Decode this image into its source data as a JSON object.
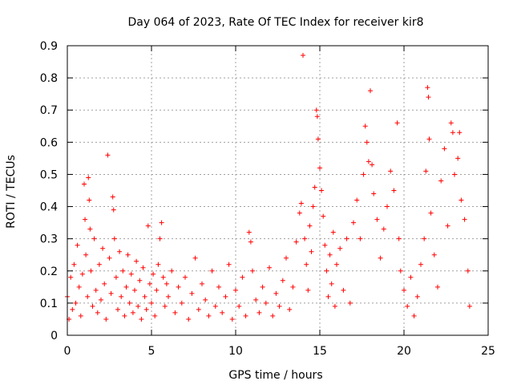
{
  "chart_data": {
    "type": "scatter",
    "title": "Day 064 of 2023, Rate Of TEC Index for receiver kir8",
    "xlabel": "GPS time / hours",
    "ylabel": "ROTI / TECUs",
    "xlim": [
      0,
      25
    ],
    "ylim": [
      0,
      0.9
    ],
    "x_ticks": [
      0,
      5,
      10,
      15,
      20,
      25
    ],
    "x_tick_labels": [
      "0",
      "5",
      "10",
      "15",
      "20",
      "25"
    ],
    "y_ticks": [
      0,
      0.1,
      0.2,
      0.3,
      0.4,
      0.5,
      0.6,
      0.7,
      0.8,
      0.9
    ],
    "y_tick_labels": [
      "0",
      "0.1",
      "0.2",
      "0.3",
      "0.4",
      "0.5",
      "0.6",
      "0.7",
      "0.8",
      "0.9"
    ],
    "grid": true,
    "marker": "+",
    "marker_color": "#ff0000",
    "series": [
      {
        "name": "ROTI",
        "points": [
          [
            0.0,
            0.12
          ],
          [
            0.1,
            0.05
          ],
          [
            0.2,
            0.18
          ],
          [
            0.3,
            0.08
          ],
          [
            0.4,
            0.22
          ],
          [
            0.5,
            0.1
          ],
          [
            0.6,
            0.28
          ],
          [
            0.7,
            0.15
          ],
          [
            0.8,
            0.06
          ],
          [
            0.9,
            0.19
          ],
          [
            1.0,
            0.47
          ],
          [
            1.05,
            0.36
          ],
          [
            1.1,
            0.25
          ],
          [
            1.2,
            0.12
          ],
          [
            1.25,
            0.49
          ],
          [
            1.3,
            0.42
          ],
          [
            1.35,
            0.33
          ],
          [
            1.4,
            0.2
          ],
          [
            1.5,
            0.09
          ],
          [
            1.6,
            0.3
          ],
          [
            1.7,
            0.14
          ],
          [
            1.8,
            0.07
          ],
          [
            1.9,
            0.22
          ],
          [
            2.0,
            0.11
          ],
          [
            2.1,
            0.27
          ],
          [
            2.2,
            0.16
          ],
          [
            2.3,
            0.05
          ],
          [
            2.4,
            0.56
          ],
          [
            2.5,
            0.24
          ],
          [
            2.6,
            0.13
          ],
          [
            2.7,
            0.43
          ],
          [
            2.75,
            0.39
          ],
          [
            2.8,
            0.3
          ],
          [
            2.9,
            0.18
          ],
          [
            3.0,
            0.08
          ],
          [
            3.1,
            0.26
          ],
          [
            3.2,
            0.12
          ],
          [
            3.3,
            0.2
          ],
          [
            3.4,
            0.06
          ],
          [
            3.5,
            0.15
          ],
          [
            3.6,
            0.25
          ],
          [
            3.7,
            0.1
          ],
          [
            3.8,
            0.19
          ],
          [
            3.9,
            0.07
          ],
          [
            4.0,
            0.14
          ],
          [
            4.1,
            0.23
          ],
          [
            4.2,
            0.09
          ],
          [
            4.3,
            0.17
          ],
          [
            4.4,
            0.05
          ],
          [
            4.5,
            0.21
          ],
          [
            4.6,
            0.12
          ],
          [
            4.7,
            0.08
          ],
          [
            4.8,
            0.34
          ],
          [
            4.9,
            0.16
          ],
          [
            5.0,
            0.1
          ],
          [
            5.1,
            0.19
          ],
          [
            5.2,
            0.06
          ],
          [
            5.3,
            0.14
          ],
          [
            5.4,
            0.22
          ],
          [
            5.5,
            0.3
          ],
          [
            5.6,
            0.35
          ],
          [
            5.7,
            0.18
          ],
          [
            5.8,
            0.09
          ],
          [
            5.9,
            0.16
          ],
          [
            6.0,
            0.12
          ],
          [
            6.2,
            0.2
          ],
          [
            6.4,
            0.07
          ],
          [
            6.6,
            0.15
          ],
          [
            6.8,
            0.1
          ],
          [
            7.0,
            0.18
          ],
          [
            7.2,
            0.05
          ],
          [
            7.4,
            0.13
          ],
          [
            7.6,
            0.24
          ],
          [
            7.8,
            0.08
          ],
          [
            8.0,
            0.16
          ],
          [
            8.2,
            0.11
          ],
          [
            8.4,
            0.06
          ],
          [
            8.6,
            0.2
          ],
          [
            8.8,
            0.09
          ],
          [
            9.0,
            0.15
          ],
          [
            9.2,
            0.07
          ],
          [
            9.4,
            0.12
          ],
          [
            9.6,
            0.22
          ],
          [
            9.8,
            0.05
          ],
          [
            10.0,
            0.14
          ],
          [
            10.2,
            0.09
          ],
          [
            10.4,
            0.18
          ],
          [
            10.6,
            0.06
          ],
          [
            10.8,
            0.32
          ],
          [
            10.9,
            0.29
          ],
          [
            11.0,
            0.2
          ],
          [
            11.2,
            0.11
          ],
          [
            11.4,
            0.07
          ],
          [
            11.6,
            0.15
          ],
          [
            11.8,
            0.1
          ],
          [
            12.0,
            0.21
          ],
          [
            12.2,
            0.06
          ],
          [
            12.4,
            0.13
          ],
          [
            12.6,
            0.09
          ],
          [
            12.8,
            0.17
          ],
          [
            13.0,
            0.24
          ],
          [
            13.2,
            0.08
          ],
          [
            13.4,
            0.15
          ],
          [
            13.6,
            0.29
          ],
          [
            13.8,
            0.38
          ],
          [
            13.9,
            0.41
          ],
          [
            14.0,
            0.87
          ],
          [
            14.1,
            0.3
          ],
          [
            14.2,
            0.22
          ],
          [
            14.3,
            0.14
          ],
          [
            14.4,
            0.34
          ],
          [
            14.5,
            0.26
          ],
          [
            14.6,
            0.4
          ],
          [
            14.7,
            0.46
          ],
          [
            14.8,
            0.7
          ],
          [
            14.85,
            0.68
          ],
          [
            14.9,
            0.61
          ],
          [
            15.0,
            0.52
          ],
          [
            15.1,
            0.45
          ],
          [
            15.2,
            0.37
          ],
          [
            15.3,
            0.28
          ],
          [
            15.4,
            0.2
          ],
          [
            15.5,
            0.12
          ],
          [
            15.6,
            0.25
          ],
          [
            15.7,
            0.16
          ],
          [
            15.8,
            0.32
          ],
          [
            15.9,
            0.09
          ],
          [
            16.0,
            0.22
          ],
          [
            16.2,
            0.27
          ],
          [
            16.4,
            0.14
          ],
          [
            16.6,
            0.3
          ],
          [
            16.8,
            0.1
          ],
          [
            17.0,
            0.35
          ],
          [
            17.2,
            0.42
          ],
          [
            17.4,
            0.3
          ],
          [
            17.6,
            0.5
          ],
          [
            17.7,
            0.65
          ],
          [
            17.8,
            0.6
          ],
          [
            17.9,
            0.54
          ],
          [
            18.0,
            0.76
          ],
          [
            18.1,
            0.53
          ],
          [
            18.2,
            0.44
          ],
          [
            18.4,
            0.36
          ],
          [
            18.6,
            0.24
          ],
          [
            18.8,
            0.33
          ],
          [
            19.0,
            0.4
          ],
          [
            19.2,
            0.51
          ],
          [
            19.4,
            0.45
          ],
          [
            19.6,
            0.66
          ],
          [
            19.7,
            0.3
          ],
          [
            19.8,
            0.2
          ],
          [
            20.0,
            0.14
          ],
          [
            20.2,
            0.09
          ],
          [
            20.4,
            0.18
          ],
          [
            20.6,
            0.06
          ],
          [
            20.8,
            0.12
          ],
          [
            21.0,
            0.22
          ],
          [
            21.2,
            0.3
          ],
          [
            21.3,
            0.51
          ],
          [
            21.4,
            0.77
          ],
          [
            21.45,
            0.74
          ],
          [
            21.5,
            0.61
          ],
          [
            21.6,
            0.38
          ],
          [
            21.8,
            0.25
          ],
          [
            22.0,
            0.15
          ],
          [
            22.2,
            0.48
          ],
          [
            22.4,
            0.58
          ],
          [
            22.6,
            0.34
          ],
          [
            22.8,
            0.66
          ],
          [
            22.9,
            0.63
          ],
          [
            23.0,
            0.5
          ],
          [
            23.2,
            0.55
          ],
          [
            23.3,
            0.63
          ],
          [
            23.4,
            0.42
          ],
          [
            23.6,
            0.36
          ],
          [
            23.8,
            0.2
          ],
          [
            23.9,
            0.09
          ]
        ]
      }
    ]
  }
}
